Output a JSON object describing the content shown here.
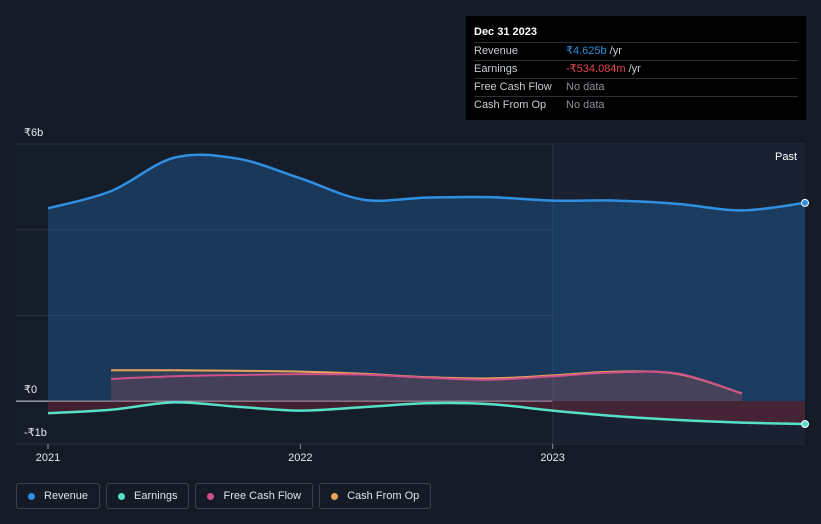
{
  "tooltip": {
    "date": "Dec 31 2023",
    "rows": [
      {
        "label": "Revenue",
        "value": "₹4.625b",
        "unit": "/yr",
        "color": "#2f8fe0"
      },
      {
        "label": "Earnings",
        "value": "-₹534.084m",
        "unit": "/yr",
        "color": "#e5484d"
      },
      {
        "label": "Free Cash Flow",
        "value": "No data",
        "unit": ""
      },
      {
        "label": "Cash From Op",
        "value": "No data",
        "unit": ""
      }
    ]
  },
  "past_label": "Past",
  "legend": [
    {
      "label": "Revenue",
      "color": "#2f8fe0"
    },
    {
      "label": "Earnings",
      "color": "#55e0c8"
    },
    {
      "label": "Free Cash Flow",
      "color": "#d0508a"
    },
    {
      "label": "Cash From Op",
      "color": "#e8a45a"
    }
  ],
  "chart_data": {
    "type": "line",
    "y_unit_labels": {
      "top": "₹6b",
      "zero": "₹0",
      "bottom": "-₹1b"
    },
    "ylim": [
      -1,
      6
    ],
    "xlim": [
      2021.0,
      2024.0
    ],
    "x_ticks": [
      {
        "value": 2021,
        "label": "2021"
      },
      {
        "value": 2022,
        "label": "2022"
      },
      {
        "value": 2023,
        "label": "2023"
      }
    ],
    "highlight_from": 2023.0,
    "grid": true,
    "series": [
      {
        "name": "Revenue",
        "color": "#2f8fe0",
        "fill": true,
        "points": [
          [
            2021.0,
            4.5
          ],
          [
            2021.25,
            4.9
          ],
          [
            2021.5,
            5.68
          ],
          [
            2021.75,
            5.66
          ],
          [
            2022.0,
            5.2
          ],
          [
            2022.25,
            4.7
          ],
          [
            2022.5,
            4.75
          ],
          [
            2022.75,
            4.76
          ],
          [
            2023.0,
            4.68
          ],
          [
            2023.25,
            4.68
          ],
          [
            2023.5,
            4.6
          ],
          [
            2023.75,
            4.45
          ],
          [
            2024.0,
            4.625
          ]
        ]
      },
      {
        "name": "Earnings",
        "color": "#55e0c8",
        "fill": true,
        "points": [
          [
            2021.0,
            -0.28
          ],
          [
            2021.25,
            -0.2
          ],
          [
            2021.5,
            -0.03
          ],
          [
            2021.75,
            -0.13
          ],
          [
            2022.0,
            -0.22
          ],
          [
            2022.25,
            -0.14
          ],
          [
            2022.5,
            -0.05
          ],
          [
            2022.75,
            -0.07
          ],
          [
            2023.0,
            -0.22
          ],
          [
            2023.25,
            -0.35
          ],
          [
            2023.5,
            -0.44
          ],
          [
            2023.75,
            -0.5
          ],
          [
            2024.0,
            -0.534
          ]
        ]
      },
      {
        "name": "Free Cash Flow",
        "color": "#d0508a",
        "fill": true,
        "points": [
          [
            2021.25,
            0.52
          ],
          [
            2021.5,
            0.58
          ],
          [
            2021.75,
            0.61
          ],
          [
            2022.0,
            0.63
          ],
          [
            2022.25,
            0.62
          ],
          [
            2022.5,
            0.55
          ],
          [
            2022.75,
            0.5
          ],
          [
            2023.0,
            0.58
          ],
          [
            2023.25,
            0.67
          ],
          [
            2023.5,
            0.64
          ],
          [
            2023.75,
            0.18
          ]
        ]
      },
      {
        "name": "Cash From Op",
        "color": "#e8a45a",
        "fill": true,
        "points": [
          [
            2021.25,
            0.72
          ],
          [
            2021.5,
            0.72
          ],
          [
            2021.75,
            0.71
          ],
          [
            2022.0,
            0.69
          ],
          [
            2022.25,
            0.64
          ],
          [
            2022.5,
            0.56
          ],
          [
            2022.75,
            0.53
          ],
          [
            2023.0,
            0.6
          ],
          [
            2023.25,
            0.69
          ],
          [
            2023.5,
            0.63
          ],
          [
            2023.75,
            0.18
          ]
        ]
      }
    ]
  }
}
